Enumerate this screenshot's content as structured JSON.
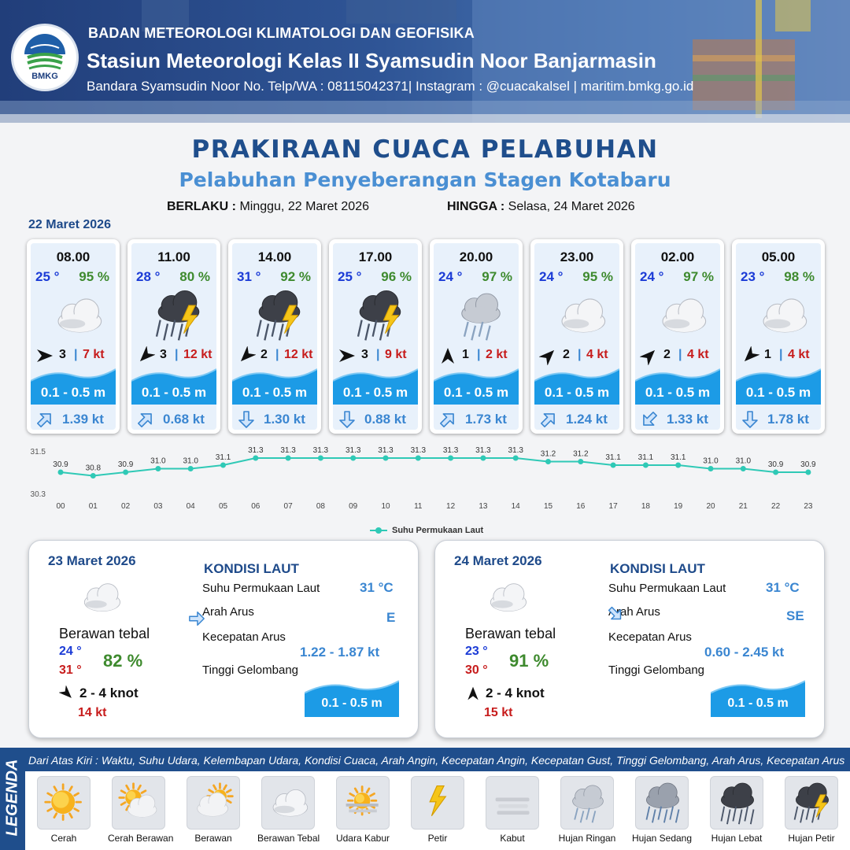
{
  "header": {
    "agency": "BADAN METEOROLOGI KLIMATOLOGI DAN GEOFISIKA",
    "station": "Stasiun Meteorologi Kelas II Syamsudin Noor Banjarmasin",
    "contact": "Bandara Syamsudin Noor No. Telp/WA : 08115042371| Instagram : @cuacakalsel | maritim.bmkg.go.id",
    "logo_text": "BMKG"
  },
  "title": "PRAKIRAAN CUACA PELABUHAN",
  "subtitle": "Pelabuhan Penyeberangan Stagen Kotabaru",
  "validity": {
    "from_label": "BERLAKU :",
    "from_value": "Minggu, 22 Maret 2026",
    "to_label": "HINGGA :",
    "to_value": "Selasa, 24 Maret 2026"
  },
  "day1_date": "22 Maret 2026",
  "hourly": [
    {
      "time": "08.00",
      "temp": "25 °",
      "hum": "95 %",
      "icon": "berawan-tebal-icon",
      "wind_dir": "E",
      "wind": "3",
      "gust": "7 kt",
      "wave": "0.1 - 0.5 m",
      "current_dir": "NE",
      "current": "1.39 kt"
    },
    {
      "time": "11.00",
      "temp": "28 °",
      "hum": "80 %",
      "icon": "hujan-petir-icon",
      "wind_dir": "SW",
      "wind": "3",
      "gust": "12 kt",
      "wave": "0.1 - 0.5 m",
      "current_dir": "NE",
      "current": "0.68 kt"
    },
    {
      "time": "14.00",
      "temp": "31 °",
      "hum": "92 %",
      "icon": "hujan-petir-icon",
      "wind_dir": "SW",
      "wind": "2",
      "gust": "12 kt",
      "wave": "0.1 - 0.5 m",
      "current_dir": "S",
      "current": "1.30 kt"
    },
    {
      "time": "17.00",
      "temp": "25 °",
      "hum": "96 %",
      "icon": "hujan-petir-icon",
      "wind_dir": "E",
      "wind": "3",
      "gust": "9 kt",
      "wave": "0.1 - 0.5 m",
      "current_dir": "S",
      "current": "0.88 kt"
    },
    {
      "time": "20.00",
      "temp": "24 °",
      "hum": "97 %",
      "icon": "hujan-ringan-icon",
      "wind_dir": "N",
      "wind": "1",
      "gust": "2 kt",
      "wave": "0.1 - 0.5 m",
      "current_dir": "NE",
      "current": "1.73 kt"
    },
    {
      "time": "23.00",
      "temp": "24 °",
      "hum": "95 %",
      "icon": "berawan-tebal-icon",
      "wind_dir": "NE",
      "wind": "2",
      "gust": "4 kt",
      "wave": "0.1 - 0.5 m",
      "current_dir": "NE",
      "current": "1.24 kt"
    },
    {
      "time": "02.00",
      "temp": "24 °",
      "hum": "97 %",
      "icon": "berawan-tebal-icon",
      "wind_dir": "NE",
      "wind": "2",
      "gust": "4 kt",
      "wave": "0.1 - 0.5 m",
      "current_dir": "SW",
      "current": "1.33 kt"
    },
    {
      "time": "05.00",
      "temp": "23 °",
      "hum": "98 %",
      "icon": "berawan-tebal-icon",
      "wind_dir": "SW",
      "wind": "1",
      "gust": "4 kt",
      "wave": "0.1 - 0.5 m",
      "current_dir": "S",
      "current": "1.78 kt"
    }
  ],
  "chart_data": {
    "type": "line",
    "x": [
      "00",
      "01",
      "02",
      "03",
      "04",
      "05",
      "06",
      "07",
      "08",
      "09",
      "10",
      "11",
      "12",
      "13",
      "14",
      "15",
      "16",
      "17",
      "18",
      "19",
      "20",
      "21",
      "22",
      "23"
    ],
    "series": [
      {
        "name": "Suhu Permukaan Laut",
        "values": [
          30.9,
          30.8,
          30.9,
          31.0,
          31.0,
          31.1,
          31.3,
          31.3,
          31.3,
          31.3,
          31.3,
          31.3,
          31.3,
          31.3,
          31.3,
          31.2,
          31.2,
          31.1,
          31.1,
          31.1,
          31.0,
          31.0,
          30.9,
          30.9
        ]
      }
    ],
    "data_labels": [
      "30.9",
      "30.8",
      "30.9",
      "31.0",
      "31.0",
      "31.1",
      "31.3",
      "31.3",
      "31.3",
      "31.3",
      "31.3",
      "31.3",
      "31.3",
      "31.3",
      "31.3",
      "31.2",
      "31.2",
      "31.1",
      "31.1",
      "31.1",
      "31.0",
      "31.0",
      "30.9",
      "30.9"
    ],
    "ylim": [
      30.3,
      31.5
    ],
    "yticks": [
      "31.5",
      "30.3"
    ],
    "legend": "bottom",
    "color": "#2fc9b6"
  },
  "days": [
    {
      "date": "23 Maret 2026",
      "icon": "berawan-tebal-icon",
      "condition": "Berawan tebal",
      "tmin": "24 °",
      "tmax": "31 °",
      "hum": "82 %",
      "wind_dir": "SE",
      "wind": "2  - 4 knot",
      "gust": "14 kt",
      "kondisi_title": "KONDISI LAUT",
      "sst_label": "Suhu Permukaan Laut",
      "sst": "31 °C",
      "arus_label": "Arah Arus",
      "arus": "E",
      "kec_label": "Kecepatan Arus",
      "kec": "1.22 - 1.87 kt",
      "gel_label": "Tinggi Gelombang",
      "gel": "0.1 - 0.5 m"
    },
    {
      "date": "24 Maret 2026",
      "icon": "berawan-tebal-icon",
      "condition": "Berawan tebal",
      "tmin": "23 °",
      "tmax": "30 °",
      "hum": "91 %",
      "wind_dir": "N",
      "wind": "2  - 4 knot",
      "gust": "15 kt",
      "kondisi_title": "KONDISI LAUT",
      "sst_label": "Suhu Permukaan Laut",
      "sst": "31 °C",
      "arus_label": "Arah Arus",
      "arus": "SE",
      "kec_label": "Kecepatan Arus",
      "kec": "0.60 - 2.45 kt",
      "gel_label": "Tinggi Gelombang",
      "gel": "0.1 - 0.5 m"
    }
  ],
  "legend": {
    "title": "LEGENDA",
    "description": "Dari Atas Kiri : Waktu, Suhu Udara, Kelembapan Udara, Kondisi Cuaca, Arah Angin, Kecepatan Angin, Kecepatan Gust, Tinggi Gelombang, Arah Arus, Kecepatan Arus",
    "items": [
      {
        "label": "Cerah",
        "icon": "cerah-icon"
      },
      {
        "label": "Cerah Berawan",
        "icon": "cerah-berawan-icon"
      },
      {
        "label": "Berawan",
        "icon": "berawan-icon"
      },
      {
        "label": "Berawan Tebal",
        "icon": "berawan-tebal-icon"
      },
      {
        "label": "Udara Kabur",
        "icon": "udara-kabur-icon"
      },
      {
        "label": "Petir",
        "icon": "petir-icon"
      },
      {
        "label": "Kabut",
        "icon": "kabut-icon"
      },
      {
        "label": "Hujan Ringan",
        "icon": "hujan-ringan-icon"
      },
      {
        "label": "Hujan Sedang",
        "icon": "hujan-sedang-icon"
      },
      {
        "label": "Hujan Lebat",
        "icon": "hujan-lebat-icon"
      },
      {
        "label": "Hujan Petir",
        "icon": "hujan-petir-icon"
      }
    ]
  }
}
